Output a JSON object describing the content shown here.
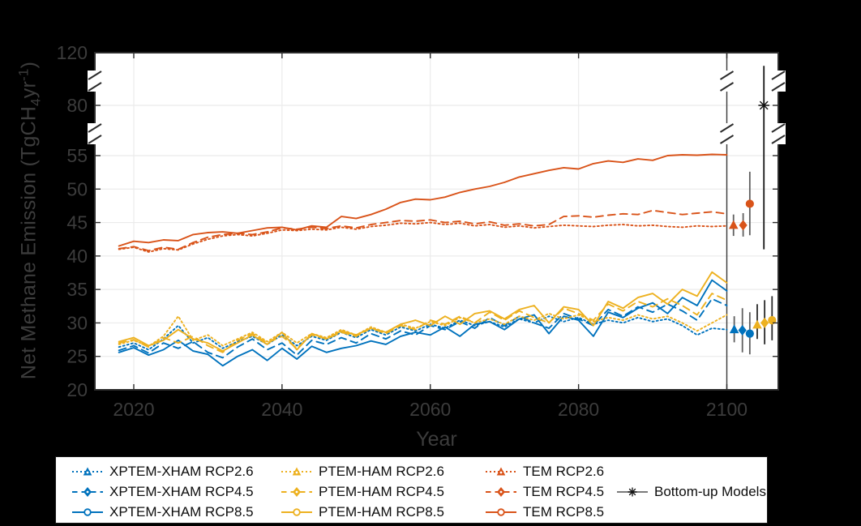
{
  "figure": {
    "background": "#000000",
    "plot_background": "#ffffff",
    "axis_color": "#2b2b2b",
    "tick_label_color": "#3c3c3c",
    "grid_color": "#ebebeb",
    "ylabel": {
      "prefix": "Net Methane Emission (TgCH",
      "sub": "4",
      "mid": "yr",
      "sup": "-1",
      "suffix": ")"
    },
    "xlabel": "Year"
  },
  "colors": {
    "blue": "#0072BD",
    "yellow": "#EDB120",
    "orange": "#D95319",
    "gray": "#7a7a7a",
    "black": "#1a1a1a"
  },
  "chart_data": {
    "type": "line",
    "title": "",
    "xlabel": "Year",
    "ylabel": "Net Methane Emission (TgCH4 yr-1)",
    "x_ticks": [
      2020,
      2040,
      2060,
      2080,
      2100
    ],
    "y_ticks": [
      20,
      25,
      30,
      35,
      40,
      45,
      50,
      55,
      80,
      120
    ],
    "ylim": [
      20,
      120
    ],
    "xlim": [
      2014.8,
      2106.9
    ],
    "grid": "on",
    "y_axis_breaks": [
      [
        57,
        79
      ],
      [
        82,
        118
      ]
    ],
    "vertical_marker_line_x": 2100,
    "x": [
      2018,
      2020,
      2022,
      2024,
      2026,
      2028,
      2030,
      2032,
      2034,
      2036,
      2038,
      2040,
      2042,
      2044,
      2046,
      2048,
      2050,
      2052,
      2054,
      2056,
      2058,
      2060,
      2062,
      2064,
      2066,
      2068,
      2070,
      2072,
      2074,
      2076,
      2078,
      2080,
      2082,
      2084,
      2086,
      2088,
      2090,
      2092,
      2094,
      2096,
      2098,
      2100
    ],
    "series": [
      {
        "name": "XPTEM-XHAM RCP2.6",
        "color": "blue",
        "style": "dotted",
        "values": [
          26.4,
          27.0,
          26.0,
          27.6,
          29.6,
          27.0,
          27.8,
          26.2,
          27.2,
          28.0,
          26.8,
          28.2,
          26.6,
          28.0,
          27.4,
          28.6,
          27.8,
          29.0,
          28.2,
          29.4,
          28.8,
          29.8,
          29.2,
          30.4,
          29.6,
          30.2,
          29.4,
          30.6,
          30.0,
          31.0,
          30.2,
          30.8,
          29.8,
          30.4,
          30.0,
          30.8,
          30.2,
          30.6,
          29.6,
          28.2,
          29.2,
          29.0
        ]
      },
      {
        "name": "XPTEM-XHAM RCP4.5",
        "color": "blue",
        "style": "dashed",
        "values": [
          25.9,
          26.6,
          25.5,
          27.0,
          26.2,
          27.2,
          25.6,
          24.8,
          26.4,
          27.6,
          26.0,
          27.0,
          25.2,
          27.4,
          26.8,
          27.8,
          27.0,
          28.4,
          27.6,
          28.8,
          28.2,
          29.6,
          29.0,
          30.2,
          29.2,
          30.8,
          29.6,
          31.0,
          30.0,
          29.2,
          31.4,
          30.6,
          29.6,
          32.0,
          31.0,
          32.4,
          31.6,
          32.8,
          31.8,
          30.4,
          33.6,
          32.6
        ]
      },
      {
        "name": "XPTEM-XHAM RCP8.5",
        "color": "blue",
        "style": "solid",
        "values": [
          25.6,
          26.3,
          25.2,
          26.0,
          27.4,
          25.8,
          25.3,
          23.6,
          25.0,
          26.0,
          24.4,
          26.2,
          24.6,
          26.5,
          25.6,
          26.2,
          26.6,
          27.3,
          26.8,
          28.0,
          28.6,
          28.2,
          29.4,
          28.0,
          29.8,
          30.2,
          29.0,
          30.6,
          31.2,
          28.4,
          31.0,
          30.4,
          28.0,
          31.6,
          30.8,
          32.2,
          33.0,
          31.4,
          33.8,
          32.6,
          36.4,
          34.8
        ]
      },
      {
        "name": "PTEM-HAM RCP2.6",
        "color": "yellow",
        "style": "dotted",
        "values": [
          26.8,
          27.4,
          26.5,
          28.0,
          31.0,
          27.4,
          28.2,
          26.6,
          27.6,
          28.6,
          27.2,
          28.6,
          27.0,
          28.4,
          27.8,
          29.0,
          28.2,
          29.4,
          28.6,
          29.8,
          29.2,
          30.2,
          29.6,
          30.8,
          30.0,
          30.6,
          29.8,
          31.0,
          30.4,
          31.4,
          30.6,
          31.2,
          30.2,
          30.8,
          30.4,
          31.2,
          30.6,
          31.0,
          30.0,
          28.8,
          30.0,
          31.2
        ]
      },
      {
        "name": "PTEM-HAM RCP4.5",
        "color": "yellow",
        "style": "dashed",
        "values": [
          27.0,
          27.5,
          26.4,
          27.8,
          27.0,
          28.0,
          26.6,
          25.6,
          27.4,
          28.4,
          27.0,
          28.0,
          26.2,
          28.2,
          27.6,
          28.6,
          28.0,
          29.2,
          28.4,
          29.6,
          29.0,
          30.4,
          29.8,
          31.0,
          30.0,
          31.6,
          30.4,
          31.8,
          30.8,
          30.0,
          32.2,
          31.4,
          30.4,
          32.8,
          31.8,
          33.2,
          32.4,
          33.6,
          32.6,
          31.2,
          34.4,
          33.4
        ]
      },
      {
        "name": "PTEM-HAM RCP8.5",
        "color": "yellow",
        "style": "solid",
        "values": [
          27.2,
          27.8,
          26.6,
          27.4,
          29.0,
          27.6,
          27.0,
          25.8,
          27.0,
          28.2,
          26.8,
          28.6,
          26.0,
          28.4,
          27.6,
          28.8,
          28.2,
          29.2,
          28.6,
          29.8,
          30.4,
          29.6,
          31.0,
          29.8,
          31.4,
          31.8,
          30.6,
          32.0,
          32.6,
          30.0,
          32.4,
          32.0,
          29.6,
          33.2,
          32.2,
          33.8,
          34.4,
          32.8,
          35.0,
          34.0,
          37.6,
          36.0
        ]
      },
      {
        "name": "TEM RCP2.6",
        "color": "orange",
        "style": "dotted",
        "values": [
          41.0,
          41.3,
          40.6,
          41.1,
          40.9,
          41.8,
          42.5,
          43.0,
          43.2,
          43.0,
          43.4,
          43.9,
          43.8,
          44.0,
          43.9,
          44.3,
          44.0,
          44.4,
          44.6,
          44.9,
          44.8,
          45.0,
          44.7,
          44.9,
          44.5,
          44.7,
          44.3,
          44.5,
          44.2,
          44.4,
          44.6,
          44.5,
          44.4,
          44.6,
          44.7,
          44.5,
          44.6,
          44.4,
          44.3,
          44.5,
          44.4,
          44.5
        ]
      },
      {
        "name": "TEM RCP4.5",
        "color": "orange",
        "style": "dashed",
        "values": [
          41.1,
          41.4,
          40.8,
          41.3,
          41.0,
          42.0,
          42.8,
          43.2,
          43.4,
          43.2,
          43.6,
          44.2,
          44.0,
          44.3,
          44.1,
          44.5,
          44.2,
          44.7,
          45.0,
          45.3,
          45.2,
          45.4,
          45.0,
          45.2,
          44.8,
          45.1,
          44.6,
          44.8,
          44.5,
          44.7,
          45.9,
          46.0,
          45.8,
          46.1,
          46.3,
          46.2,
          46.8,
          46.5,
          46.2,
          46.4,
          46.6,
          46.3
        ]
      },
      {
        "name": "TEM RCP8.5",
        "color": "orange",
        "style": "solid",
        "values": [
          41.5,
          42.2,
          42.0,
          42.4,
          42.3,
          43.2,
          43.5,
          43.6,
          43.4,
          43.8,
          44.2,
          44.3,
          43.9,
          44.5,
          44.3,
          45.9,
          45.6,
          46.2,
          47.0,
          48.0,
          48.5,
          48.4,
          48.8,
          49.5,
          50.0,
          50.4,
          51.0,
          51.8,
          52.3,
          52.8,
          53.2,
          53.0,
          53.8,
          54.2,
          54.0,
          54.5,
          54.3,
          55.0,
          55.4,
          55.2,
          55.6,
          55.4
        ]
      }
    ],
    "summary_points": [
      {
        "label": "XPTEM-XHAM RCP2.6",
        "x": 2101.0,
        "y": 29.0,
        "lo": 27.1,
        "hi": 31.0,
        "marker": "triangle",
        "color": "blue",
        "bar": "#606060"
      },
      {
        "label": "XPTEM-XHAM RCP4.5",
        "x": 2102.1,
        "y": 28.9,
        "lo": 25.6,
        "hi": 32.2,
        "marker": "diamond",
        "color": "blue",
        "bar": "#606060"
      },
      {
        "label": "XPTEM-XHAM RCP8.5",
        "x": 2103.1,
        "y": 28.4,
        "lo": 25.3,
        "hi": 31.6,
        "marker": "circle",
        "color": "blue",
        "bar": "#606060"
      },
      {
        "label": "PTEM-HAM RCP2.6",
        "x": 2104.1,
        "y": 29.7,
        "lo": 27.6,
        "hi": 32.8,
        "marker": "triangle",
        "color": "yellow",
        "bar": "#2a2a2a"
      },
      {
        "label": "PTEM-HAM RCP4.5",
        "x": 2105.1,
        "y": 30.0,
        "lo": 26.8,
        "hi": 33.4,
        "marker": "diamond",
        "color": "yellow",
        "bar": "#2a2a2a"
      },
      {
        "label": "PTEM-HAM RCP8.5",
        "x": 2106.1,
        "y": 30.4,
        "lo": 27.4,
        "hi": 34.0,
        "marker": "circle",
        "color": "yellow",
        "bar": "#2a2a2a"
      },
      {
        "label": "TEM RCP2.6",
        "x": 2100.9,
        "y": 44.6,
        "lo": 43.0,
        "hi": 46.2,
        "marker": "triangle",
        "color": "orange",
        "bar": "#606060"
      },
      {
        "label": "TEM RCP4.5",
        "x": 2102.2,
        "y": 44.6,
        "lo": 42.9,
        "hi": 46.4,
        "marker": "diamond",
        "color": "orange",
        "bar": "#606060"
      },
      {
        "label": "TEM RCP8.5",
        "x": 2103.1,
        "y": 47.8,
        "lo": 43.1,
        "hi": 52.6,
        "marker": "circle",
        "color": "orange",
        "bar": "#606060"
      },
      {
        "label": "Bottom-up Models",
        "x": 2105.0,
        "y": 80,
        "lo": 41,
        "hi": 110,
        "marker": "asterisk",
        "color": "black",
        "bar": "#1a1a1a"
      }
    ],
    "legend": {
      "position": "below",
      "entries": [
        {
          "label": "XPTEM-XHAM RCP2.6",
          "color": "blue",
          "style": "dotted",
          "marker": "triangle",
          "col": 1,
          "row": 1
        },
        {
          "label": "XPTEM-XHAM RCP4.5",
          "color": "blue",
          "style": "dashed",
          "marker": "diamond",
          "col": 1,
          "row": 2
        },
        {
          "label": "XPTEM-XHAM RCP8.5",
          "color": "blue",
          "style": "solid",
          "marker": "circle",
          "col": 1,
          "row": 3
        },
        {
          "label": "PTEM-HAM RCP2.6",
          "color": "yellow",
          "style": "dotted",
          "marker": "triangle",
          "col": 2,
          "row": 1
        },
        {
          "label": "PTEM-HAM RCP4.5",
          "color": "yellow",
          "style": "dashed",
          "marker": "diamond",
          "col": 2,
          "row": 2
        },
        {
          "label": "PTEM-HAM RCP8.5",
          "color": "yellow",
          "style": "solid",
          "marker": "circle",
          "col": 2,
          "row": 3
        },
        {
          "label": "TEM RCP2.6",
          "color": "orange",
          "style": "dotted",
          "marker": "triangle",
          "col": 3,
          "row": 1
        },
        {
          "label": "TEM RCP4.5",
          "color": "orange",
          "style": "dashed",
          "marker": "diamond",
          "col": 3,
          "row": 2
        },
        {
          "label": "TEM RCP8.5",
          "color": "orange",
          "style": "solid",
          "marker": "circle",
          "col": 3,
          "row": 3
        },
        {
          "label": "Bottom-up Models",
          "color": "gray",
          "style": "solid",
          "marker": "asterisk",
          "col": 4,
          "row": 2
        }
      ]
    }
  }
}
